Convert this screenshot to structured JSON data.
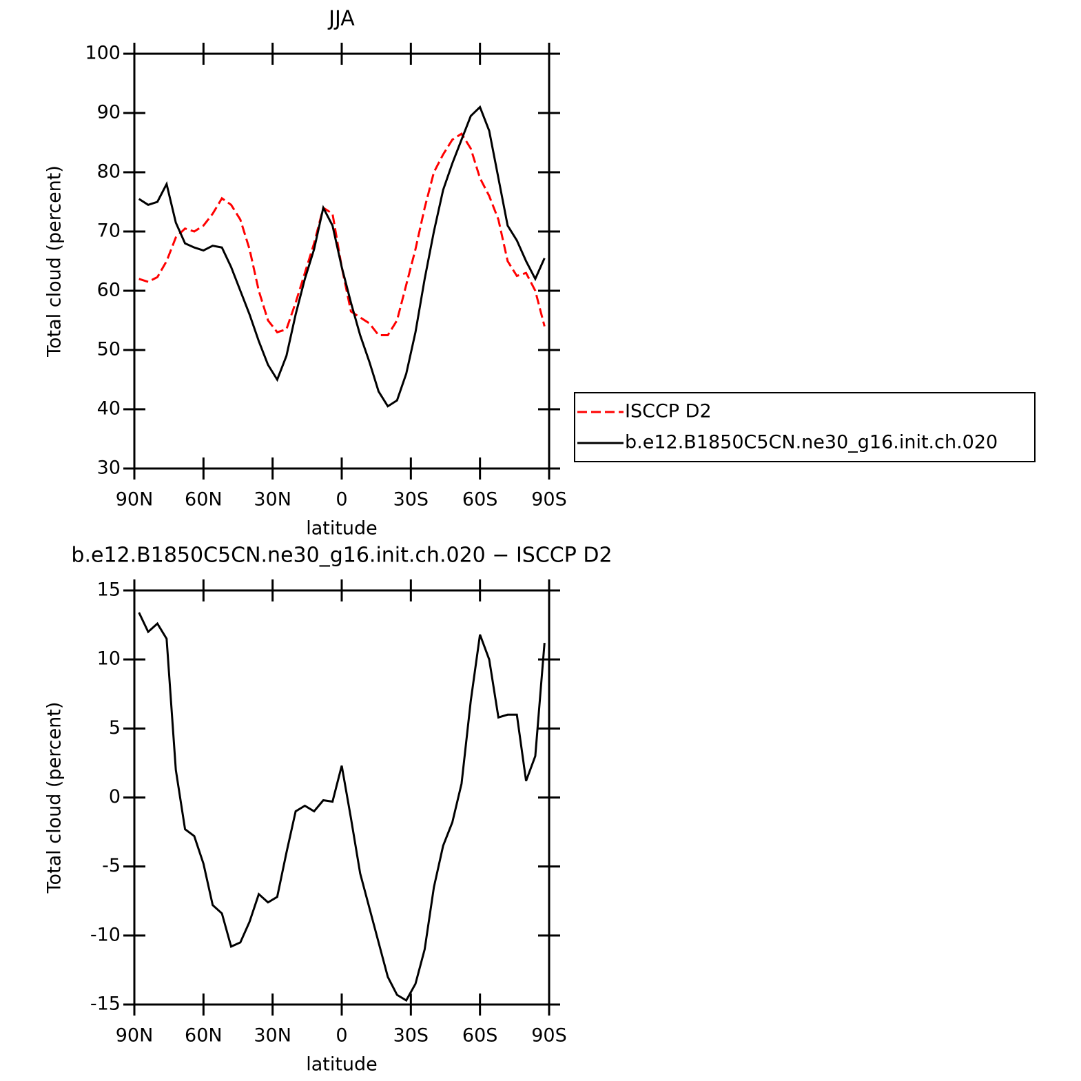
{
  "chart_data": [
    {
      "type": "line",
      "title": "JJA",
      "xlabel": "latitude",
      "ylabel": "Total cloud (percent)",
      "x": [
        88,
        84,
        80,
        76,
        72,
        68,
        64,
        60,
        56,
        52,
        48,
        44,
        40,
        36,
        32,
        28,
        24,
        20,
        16,
        12,
        8,
        4,
        0,
        -4,
        -8,
        -12,
        -16,
        -20,
        -24,
        -28,
        -32,
        -36,
        -40,
        -44,
        -48,
        -52,
        -56,
        -60,
        -64,
        -68,
        -72,
        -76,
        -80,
        -84,
        -88
      ],
      "series": [
        {
          "name": "ISCCP D2",
          "color": "#ff0000",
          "dashed": true,
          "values": [
            62,
            61.5,
            62.3,
            65,
            69,
            70.5,
            70,
            71,
            73,
            75.6,
            74.5,
            72,
            67,
            60,
            55,
            53,
            53.5,
            58,
            63,
            68,
            74,
            73,
            64,
            56.5,
            55.5,
            54.5,
            52.5,
            52.5,
            55,
            61,
            67,
            74,
            80,
            83,
            85.5,
            86.5,
            84,
            79,
            76,
            72,
            65,
            62.5,
            63,
            60,
            54
          ]
        },
        {
          "name": "b.e12.B1850C5CN.ne30_g16.init.ch.020",
          "color": "#000000",
          "dashed": false,
          "values": [
            75.5,
            74.5,
            75,
            78,
            71.5,
            68,
            67.3,
            66.8,
            67.6,
            67.3,
            64,
            60,
            56,
            51.5,
            47.5,
            45,
            49,
            56,
            62,
            67,
            74,
            71,
            64,
            58,
            52.5,
            48,
            43,
            40.5,
            41.5,
            46,
            53,
            62,
            70,
            77,
            81.5,
            85.5,
            89.5,
            91,
            87,
            79,
            71,
            68.5,
            65,
            62,
            65.5
          ]
        }
      ],
      "xlim": [
        90,
        -90
      ],
      "xticks": [
        {
          "value": 90,
          "label": "90N"
        },
        {
          "value": 60,
          "label": "60N"
        },
        {
          "value": 30,
          "label": "30N"
        },
        0,
        {
          "value": -30,
          "label": "30S"
        },
        {
          "value": -60,
          "label": "60S"
        },
        {
          "value": -90,
          "label": "90S"
        }
      ],
      "ylim": [
        30,
        100
      ],
      "yticks": [
        30,
        40,
        50,
        60,
        70,
        80,
        90,
        100
      ],
      "legend": "right"
    },
    {
      "type": "line",
      "title": "b.e12.B1850C5CN.ne30_g16.init.ch.020 − ISCCP D2",
      "xlabel": "latitude",
      "ylabel": "Total cloud (percent)",
      "x": [
        88,
        84,
        80,
        76,
        72,
        68,
        64,
        60,
        56,
        52,
        48,
        44,
        40,
        36,
        32,
        28,
        24,
        20,
        16,
        12,
        8,
        4,
        0,
        -4,
        -8,
        -12,
        -16,
        -20,
        -24,
        -28,
        -32,
        -36,
        -40,
        -44,
        -48,
        -52,
        -56,
        -60,
        -64,
        -68,
        -72,
        -76,
        -80,
        -84,
        -88
      ],
      "color": "#000000",
      "values": [
        13.4,
        12,
        12.6,
        11.5,
        2,
        -2.3,
        -2.8,
        -4.8,
        -7.8,
        -8.4,
        -10.8,
        -10.5,
        -9,
        -7,
        -7.6,
        -7.2,
        -4,
        -1,
        -0.6,
        -1,
        -0.2,
        -0.3,
        2.3,
        -1.5,
        -5.5,
        -8,
        -10.5,
        -13,
        -14.3,
        -14.7,
        -13.5,
        -11,
        -6.5,
        -3.5,
        -1.8,
        1,
        7,
        11.8,
        10,
        5.8,
        6,
        6,
        1.2,
        3,
        11.2
      ],
      "xlim": [
        90,
        -90
      ],
      "xticks": [
        {
          "value": 90,
          "label": "90N"
        },
        {
          "value": 60,
          "label": "60N"
        },
        {
          "value": 30,
          "label": "30N"
        },
        0,
        {
          "value": -30,
          "label": "30S"
        },
        {
          "value": -60,
          "label": "60S"
        },
        {
          "value": -90,
          "label": "90S"
        }
      ],
      "ylim": [
        -15,
        15
      ],
      "yticks": [
        -15,
        -10,
        -5,
        0,
        5,
        10,
        15
      ]
    }
  ]
}
